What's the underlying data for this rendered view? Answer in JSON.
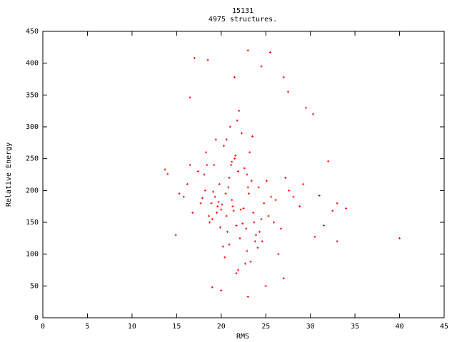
{
  "chart_data": {
    "type": "scatter",
    "title": "15131",
    "subtitle": "4975 structures.",
    "xlabel": "RMS",
    "ylabel": "Relative Energy",
    "color": "#ff0000",
    "xlim": [
      0,
      45
    ],
    "xticks": [
      0,
      5,
      10,
      15,
      20,
      25,
      30,
      35,
      40,
      45
    ],
    "ylim": [
      0,
      450
    ],
    "yticks": [
      0,
      50,
      100,
      150,
      200,
      250,
      300,
      350,
      400,
      450
    ],
    "grid": false,
    "x": [
      21.2,
      22.5,
      19.8,
      20.6,
      23.1,
      21.9,
      18.7,
      24.2,
      20.1,
      22.8,
      21.5,
      19.3,
      23.6,
      20.9,
      22.1,
      18.2,
      24.8,
      21.7,
      20.3,
      23.4,
      19.6,
      22.9,
      21.1,
      17.9,
      25.3,
      20.7,
      22.3,
      19.1,
      23.8,
      21.4,
      16.2,
      26.1,
      20.4,
      22.6,
      18.9,
      24.5,
      21.8,
      19.9,
      23.2,
      20.2,
      15.8,
      27.2,
      21.3,
      22.7,
      18.4,
      25.9,
      20.8,
      23.9,
      19.4,
      22.2,
      16.8,
      26.7,
      21.6,
      20.5,
      24.1,
      18.1,
      23.3,
      21.0,
      19.7,
      22.4,
      17.4,
      28.1,
      20.0,
      24.6,
      19.2,
      23.0,
      21.9,
      18.6,
      25.1,
      22.0,
      15.3,
      29.2,
      20.6,
      23.7,
      17.7,
      26.4,
      21.2,
      19.5,
      24.3,
      22.9,
      14.9,
      28.8,
      18.3,
      25.6,
      20.9,
      23.5,
      16.5,
      27.6,
      21.7,
      19.0,
      40,
      34,
      33,
      32.5,
      32,
      31,
      30.3,
      29.5,
      27.5,
      27,
      25.5,
      23,
      16.5,
      17,
      13.7,
      14,
      18.5,
      24.5,
      21.5,
      23,
      20,
      25,
      27,
      19,
      31.5,
      30.5,
      33
    ],
    "values": [
      185,
      172,
      210,
      160,
      195,
      230,
      150,
      205,
      178,
      140,
      250,
      190,
      165,
      220,
      125,
      200,
      180,
      145,
      270,
      215,
      175,
      105,
      240,
      188,
      160,
      135,
      290,
      198,
      120,
      168,
      210,
      185,
      95,
      235,
      180,
      155,
      310,
      142,
      260,
      112,
      190,
      220,
      175,
      85,
      240,
      150,
      205,
      130,
      280,
      170,
      165,
      140,
      255,
      195,
      110,
      225,
      88,
      300,
      182,
      148,
      230,
      190,
      170,
      120,
      240,
      205,
      75,
      160,
      215,
      325,
      195,
      210,
      280,
      150,
      180,
      100,
      245,
      165,
      135,
      225,
      130,
      175,
      260,
      190,
      115,
      285,
      240,
      200,
      70,
      155,
      125,
      172,
      120,
      168,
      246,
      192,
      320,
      330,
      355,
      378,
      417,
      420,
      346,
      408,
      233,
      226,
      405,
      395,
      378,
      33,
      43,
      50,
      62,
      48,
      145,
      127,
      180
    ]
  }
}
